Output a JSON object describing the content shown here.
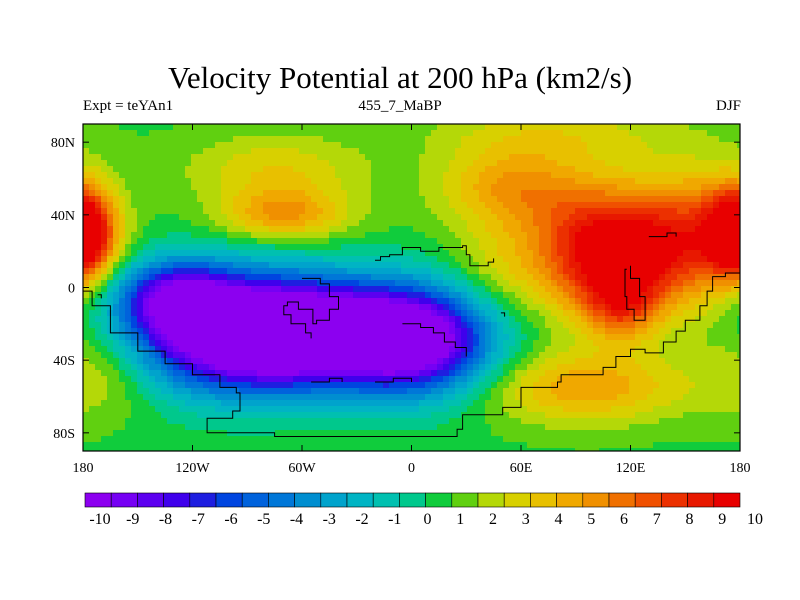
{
  "chart_data": {
    "type": "heatmap",
    "title": "Velocity Potential at 200 hPa (km2/s)",
    "subtitle_left": "Expt = teYAn1",
    "subtitle_center": "455_7_MaBP",
    "subtitle_right": "DJF",
    "x_range": [
      -180,
      180
    ],
    "y_range": [
      -90,
      90
    ],
    "x_ticks": [
      {
        "value": -180,
        "label": "180"
      },
      {
        "value": -120,
        "label": "120W"
      },
      {
        "value": -60,
        "label": "60W"
      },
      {
        "value": 0,
        "label": "0"
      },
      {
        "value": 60,
        "label": "60E"
      },
      {
        "value": 120,
        "label": "120E"
      },
      {
        "value": 180,
        "label": "180"
      }
    ],
    "y_ticks": [
      {
        "value": 80,
        "label": "80N"
      },
      {
        "value": 40,
        "label": "40N"
      },
      {
        "value": 0,
        "label": "0"
      },
      {
        "value": -40,
        "label": "40S"
      },
      {
        "value": -80,
        "label": "80S"
      }
    ],
    "colorbar": {
      "levels": [
        -10,
        -9,
        -8,
        -7,
        -6,
        -5,
        -4,
        -3,
        -2,
        -1,
        0,
        1,
        2,
        3,
        4,
        5,
        6,
        7,
        8,
        9,
        10
      ],
      "labels": [
        "-10",
        "-9",
        "-8",
        "-7",
        "-6",
        "-5",
        "-4",
        "-3",
        "-2",
        "-1",
        "0",
        "1",
        "2",
        "3",
        "4",
        "5",
        "6",
        "7",
        "8",
        "9",
        "10"
      ],
      "colors": [
        "#8c00f0",
        "#7600f4",
        "#5c00f0",
        "#3f00ec",
        "#1e1ee0",
        "#0045e0",
        "#0062dc",
        "#0077d8",
        "#008ed0",
        "#00a3cc",
        "#00b4c4",
        "#00c0b0",
        "#00c88c",
        "#10cc3c",
        "#60d010",
        "#b4d808",
        "#d8d000",
        "#e8c000",
        "#f0a800",
        "#f09000",
        "#f07000",
        "#f05000",
        "#ec3000",
        "#e81800",
        "#e80000"
      ]
    },
    "field_centers": [
      {
        "lon": -100,
        "lat": -25,
        "value": -10.6,
        "sx": 38,
        "sy": 22
      },
      {
        "lon": -45,
        "lat": -25,
        "value": -10.2,
        "sx": 40,
        "sy": 20
      },
      {
        "lon": 5,
        "lat": -30,
        "value": -8.5,
        "sx": 28,
        "sy": 20
      },
      {
        "lon": -130,
        "lat": -5,
        "value": -6.0,
        "sx": 22,
        "sy": 14
      },
      {
        "lon": 110,
        "lat": 20,
        "value": 11.0,
        "sx": 30,
        "sy": 24
      },
      {
        "lon": 115,
        "lat": -10,
        "value": 5.0,
        "sx": 14,
        "sy": 14
      },
      {
        "lon": 160,
        "lat": 30,
        "value": 5.5,
        "sx": 22,
        "sy": 25
      },
      {
        "lon": -178,
        "lat": 30,
        "value": 6.5,
        "sx": 13,
        "sy": 18
      },
      {
        "lon": 178,
        "lat": 30,
        "value": 6.0,
        "sx": 10,
        "sy": 15
      },
      {
        "lon": -75,
        "lat": 65,
        "value": 3.5,
        "sx": 35,
        "sy": 14
      },
      {
        "lon": -70,
        "lat": 40,
        "value": 5.2,
        "sx": 24,
        "sy": 10
      },
      {
        "lon": 55,
        "lat": 55,
        "value": 5.0,
        "sx": 28,
        "sy": 16
      },
      {
        "lon": 80,
        "lat": 85,
        "value": 3.0,
        "sx": 50,
        "sy": 12
      },
      {
        "lon": -170,
        "lat": -45,
        "value": 3.2,
        "sx": 22,
        "sy": 18
      },
      {
        "lon": 95,
        "lat": -55,
        "value": 5.0,
        "sx": 40,
        "sy": 14
      },
      {
        "lon": 45,
        "lat": 10,
        "value": 2.5,
        "sx": 18,
        "sy": 18
      },
      {
        "lon": -30,
        "lat": 40,
        "value": 1.2,
        "sx": 25,
        "sy": 14
      },
      {
        "lon": 0,
        "lat": -85,
        "value": 1.0,
        "sx": 90,
        "sy": 8
      }
    ],
    "field_background": 1.0,
    "coastlines": [
      [
        [
          -180,
          -2
        ],
        [
          -175,
          -10
        ],
        [
          -165,
          -25
        ],
        [
          -150,
          -35
        ],
        [
          -135,
          -42
        ],
        [
          -120,
          -48
        ],
        [
          -105,
          -55
        ],
        [
          -96,
          -58
        ],
        [
          -94,
          -68
        ],
        [
          -98,
          -72
        ],
        [
          -108,
          -72
        ],
        [
          -112,
          -80
        ],
        [
          -75,
          -82
        ],
        [
          20,
          -82
        ],
        [
          25,
          -78
        ],
        [
          28,
          -70
        ],
        [
          50,
          -66
        ],
        [
          60,
          -55
        ],
        [
          80,
          -52
        ],
        [
          82,
          -48
        ],
        [
          95,
          -48
        ],
        [
          105,
          -44
        ],
        [
          112,
          -38
        ],
        [
          120,
          -34
        ],
        [
          128,
          -36
        ],
        [
          138,
          -30
        ],
        [
          145,
          -24
        ],
        [
          150,
          -18
        ],
        [
          158,
          -10
        ],
        [
          162,
          -2
        ],
        [
          165,
          6
        ],
        [
          172,
          8
        ],
        [
          180,
          4
        ]
      ],
      [
        [
          -20,
          15
        ],
        [
          -17,
          17
        ],
        [
          -12,
          18
        ],
        [
          -5,
          22
        ],
        [
          5,
          20
        ],
        [
          15,
          22
        ],
        [
          28,
          23
        ],
        [
          30,
          18
        ],
        [
          32,
          12
        ],
        [
          42,
          14
        ],
        [
          45,
          16
        ]
      ],
      [
        [
          -60,
          5
        ],
        [
          -50,
          2
        ],
        [
          -45,
          -5
        ],
        [
          -40,
          -12
        ],
        [
          -45,
          -18
        ],
        [
          -52,
          -20
        ],
        [
          -54,
          -12
        ],
        [
          -62,
          -8
        ],
        [
          -68,
          -10
        ],
        [
          -70,
          -15
        ],
        [
          -66,
          -20
        ],
        [
          -58,
          -25
        ],
        [
          -55,
          -28
        ]
      ],
      [
        [
          -5,
          -20
        ],
        [
          5,
          -22
        ],
        [
          12,
          -25
        ],
        [
          18,
          -30
        ],
        [
          24,
          -33
        ],
        [
          30,
          -38
        ]
      ],
      [
        [
          118,
          10
        ],
        [
          117,
          -5
        ],
        [
          118,
          -12
        ],
        [
          122,
          -18
        ],
        [
          128,
          -14
        ],
        [
          128,
          -5
        ],
        [
          125,
          5
        ],
        [
          120,
          12
        ]
      ],
      [
        [
          130,
          28
        ],
        [
          140,
          30
        ],
        [
          145,
          28
        ]
      ],
      [
        [
          -55,
          -52
        ],
        [
          -45,
          -50
        ],
        [
          -38,
          -52
        ]
      ],
      [
        [
          -20,
          -52
        ],
        [
          -10,
          -50
        ],
        [
          0,
          -52
        ]
      ],
      [
        [
          -172,
          -4
        ],
        [
          -170,
          -6
        ]
      ],
      [
        [
          49,
          -14
        ],
        [
          51,
          -16
        ]
      ]
    ]
  }
}
